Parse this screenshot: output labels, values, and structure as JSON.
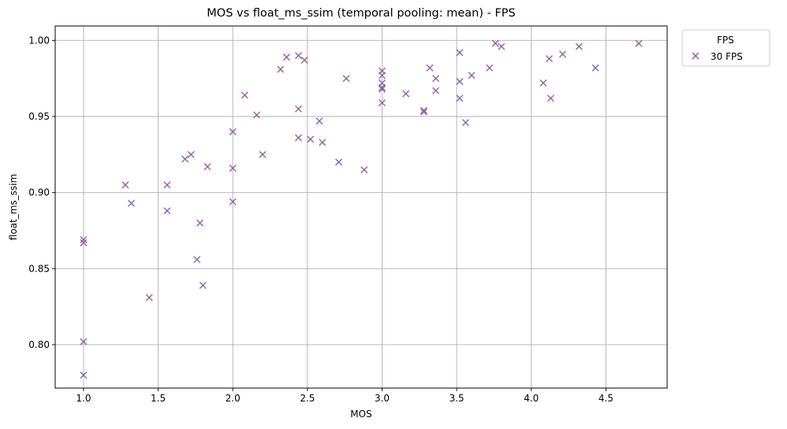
{
  "chart_data": {
    "type": "scatter",
    "title": "MOS vs float_ms_ssim (temporal pooling: mean) - FPS",
    "xlabel": "MOS",
    "ylabel": "float_ms_ssim",
    "xlim": [
      0.81,
      4.91
    ],
    "ylim": [
      0.7715,
      1.0095
    ],
    "xticks": [
      1.0,
      1.5,
      2.0,
      2.5,
      3.0,
      3.5,
      4.0,
      4.5
    ],
    "xtick_labels": [
      "1.0",
      "1.5",
      "2.0",
      "2.5",
      "3.0",
      "3.5",
      "4.0",
      "4.5"
    ],
    "yticks": [
      0.8,
      0.85,
      0.9,
      0.95,
      1.0
    ],
    "ytick_labels": [
      "0.80",
      "0.85",
      "0.90",
      "0.95",
      "1.00"
    ],
    "grid": true,
    "legend": {
      "title": "FPS",
      "position": "outside-top-right",
      "entries": [
        "30 FPS"
      ]
    },
    "series": [
      {
        "name": "30 FPS",
        "marker": "x",
        "color": "#8c5a9e",
        "points": [
          [
            1.0,
            0.869
          ],
          [
            1.0,
            0.867
          ],
          [
            1.0,
            0.802
          ],
          [
            1.0,
            0.78
          ],
          [
            1.28,
            0.905
          ],
          [
            1.32,
            0.893
          ],
          [
            1.44,
            0.831
          ],
          [
            1.56,
            0.905
          ],
          [
            1.56,
            0.888
          ],
          [
            1.68,
            0.922
          ],
          [
            1.72,
            0.925
          ],
          [
            1.76,
            0.856
          ],
          [
            1.78,
            0.88
          ],
          [
            1.8,
            0.839
          ],
          [
            1.83,
            0.917
          ],
          [
            2.0,
            0.94
          ],
          [
            2.0,
            0.916
          ],
          [
            2.0,
            0.894
          ],
          [
            2.08,
            0.964
          ],
          [
            2.16,
            0.951
          ],
          [
            2.2,
            0.925
          ],
          [
            2.32,
            0.981
          ],
          [
            2.36,
            0.989
          ],
          [
            2.44,
            0.99
          ],
          [
            2.44,
            0.955
          ],
          [
            2.44,
            0.936
          ],
          [
            2.48,
            0.987
          ],
          [
            2.52,
            0.935
          ],
          [
            2.58,
            0.947
          ],
          [
            2.6,
            0.933
          ],
          [
            2.71,
            0.92
          ],
          [
            2.76,
            0.975
          ],
          [
            2.88,
            0.915
          ],
          [
            3.0,
            0.98
          ],
          [
            3.0,
            0.977
          ],
          [
            3.0,
            0.972
          ],
          [
            3.0,
            0.969
          ],
          [
            3.0,
            0.968
          ],
          [
            3.0,
            0.959
          ],
          [
            3.16,
            0.965
          ],
          [
            3.28,
            0.954
          ],
          [
            3.28,
            0.953
          ],
          [
            3.32,
            0.982
          ],
          [
            3.36,
            0.975
          ],
          [
            3.36,
            0.967
          ],
          [
            3.52,
            0.992
          ],
          [
            3.52,
            0.973
          ],
          [
            3.52,
            0.962
          ],
          [
            3.56,
            0.946
          ],
          [
            3.6,
            0.977
          ],
          [
            3.72,
            0.982
          ],
          [
            3.76,
            0.998
          ],
          [
            3.8,
            0.996
          ],
          [
            4.08,
            0.972
          ],
          [
            4.12,
            0.988
          ],
          [
            4.13,
            0.962
          ],
          [
            4.21,
            0.991
          ],
          [
            4.32,
            0.996
          ],
          [
            4.43,
            0.982
          ],
          [
            4.72,
            0.998
          ]
        ]
      }
    ]
  }
}
